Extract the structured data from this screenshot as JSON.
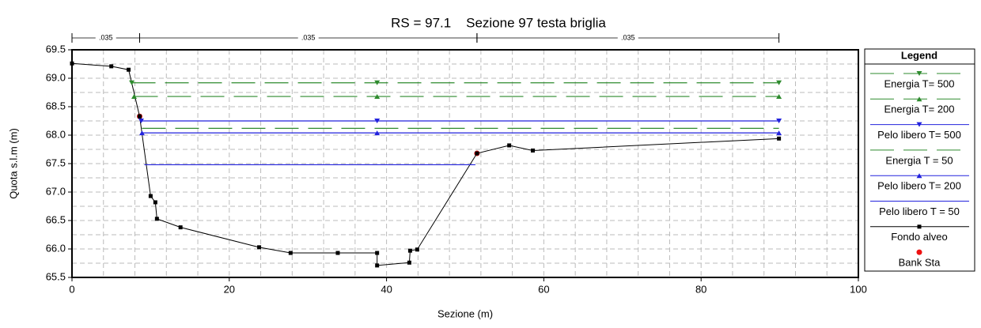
{
  "chart_data": {
    "type": "line",
    "title": "RS = 97.1    Sezione 97 testa briglia",
    "xlabel": "Sezione (m)",
    "ylabel": "Quota s.l.m (m)",
    "xlim": [
      0,
      100
    ],
    "ylim": [
      65.5,
      69.5
    ],
    "xticks": [
      0,
      20,
      40,
      60,
      80,
      100
    ],
    "yticks": [
      {
        "value": 69.5,
        "label": "69.5"
      },
      {
        "value": 69,
        "label": "69.0"
      },
      {
        "value": 68.5,
        "label": "68.5"
      },
      {
        "value": 68,
        "label": "68.0"
      },
      {
        "value": 67.5,
        "label": "67.5"
      },
      {
        "value": 67,
        "label": "67.0"
      },
      {
        "value": 66.5,
        "label": "66.5"
      },
      {
        "value": 66,
        "label": "66.0"
      },
      {
        "value": 65.5,
        "label": "65.5"
      }
    ],
    "grid": true,
    "legend_title": "Legend",
    "roughness": [
      ".035",
      ".035",
      ".035"
    ],
    "series": [
      {
        "name": "Energia T= 500",
        "color": "#2e8b2e",
        "dash": true,
        "marker": "down",
        "x": [
          7.6,
          38.8,
          89.9
        ],
        "values": [
          68.92,
          68.92,
          68.92
        ]
      },
      {
        "name": "Energia T= 200",
        "color": "#2e8b2e",
        "dash": true,
        "marker": "up",
        "x": [
          7.9,
          38.8,
          89.9
        ],
        "values": [
          68.68,
          68.68,
          68.68
        ]
      },
      {
        "name": "Pelo libero T= 500",
        "color": "#2222dd",
        "dash": false,
        "marker": "down",
        "x": [
          8.8,
          38.8,
          89.9
        ],
        "values": [
          68.25,
          68.25,
          68.25
        ]
      },
      {
        "name": "Energia T = 50",
        "color": "#2e8b2e",
        "dash": true,
        "marker": "none",
        "x": [
          8.9,
          89.9
        ],
        "values": [
          68.12,
          68.12
        ]
      },
      {
        "name": "Pelo libero T= 200",
        "color": "#2222dd",
        "dash": false,
        "marker": "up",
        "x": [
          8.9,
          38.8,
          89.9
        ],
        "values": [
          68.04,
          68.04,
          68.04
        ]
      },
      {
        "name": "Pelo libero T = 50",
        "color": "#2222dd",
        "dash": false,
        "marker": "none",
        "x": [
          9.2,
          51.3
        ],
        "values": [
          67.48,
          67.48
        ]
      },
      {
        "name": "Fondo alveo",
        "color": "#000000",
        "dash": false,
        "marker": "square",
        "x": [
          0,
          5,
          7.2,
          8.6,
          10,
          10.6,
          10.8,
          13.8,
          23.8,
          27.8,
          33.8,
          38.8,
          38.8,
          42.9,
          43,
          43.9,
          51.5,
          55.6,
          58.6,
          89.9
        ],
        "values": [
          69.26,
          69.21,
          69.15,
          68.33,
          66.93,
          66.82,
          66.53,
          66.38,
          66.03,
          65.93,
          65.93,
          65.93,
          65.71,
          65.76,
          65.97,
          65.99,
          67.68,
          67.82,
          67.73,
          67.94
        ]
      },
      {
        "name": "Bank Sta",
        "color": "#ee1111",
        "dash": false,
        "marker": "circle",
        "line": false,
        "x": [
          8.6,
          51.5
        ],
        "values": [
          68.33,
          67.68
        ]
      }
    ]
  }
}
